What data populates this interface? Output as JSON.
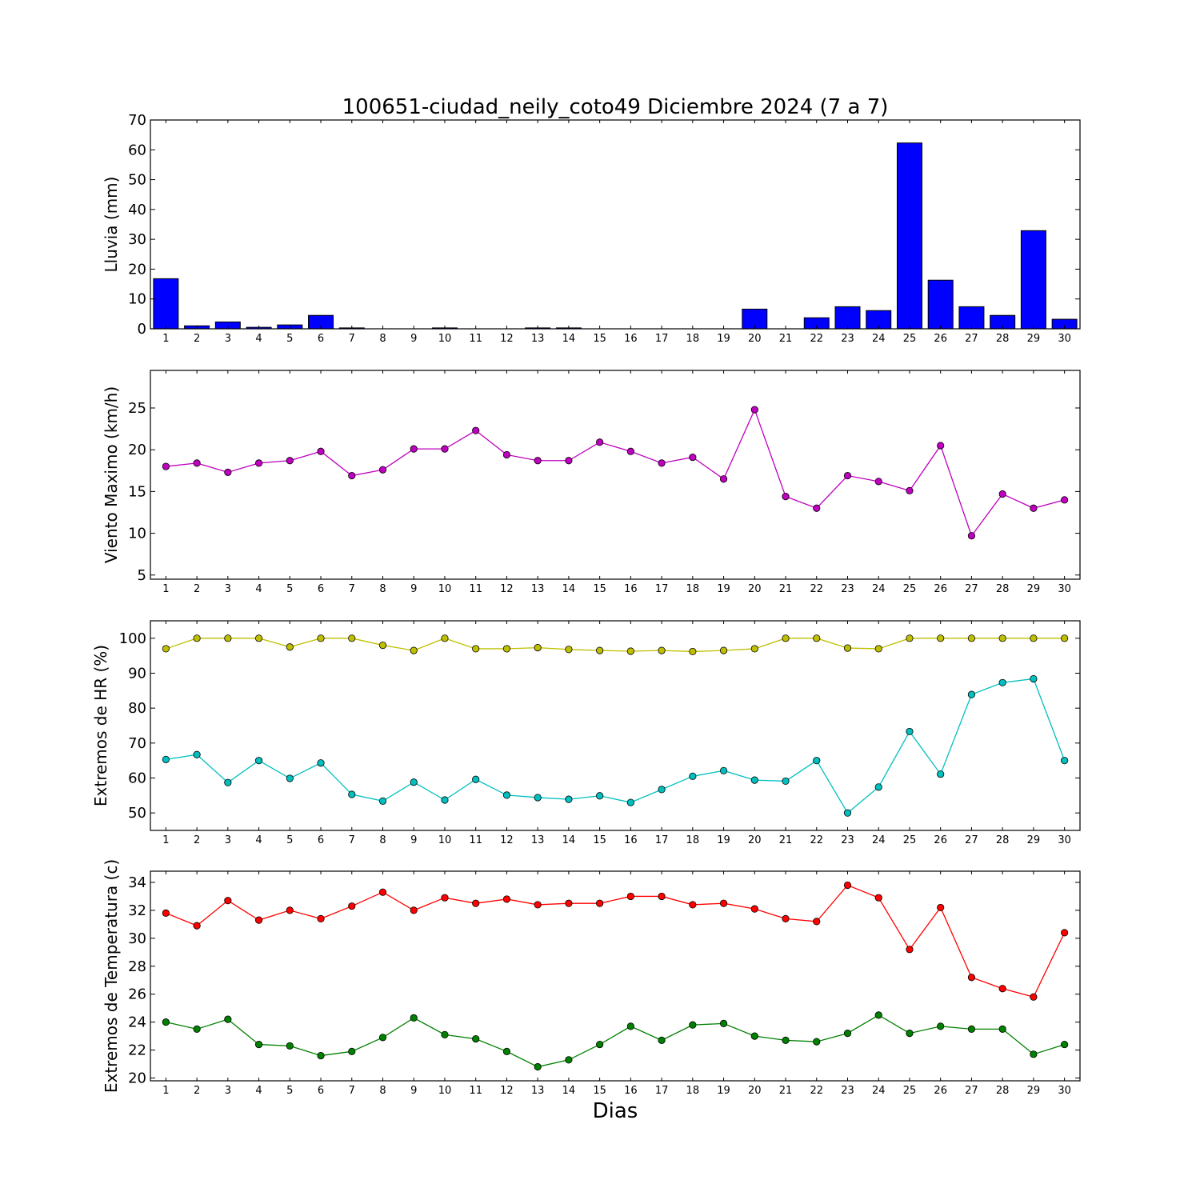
{
  "figure": {
    "title": "100651-ciudad_neily_coto49 Diciembre 2024  (7 a 7)",
    "xlabel": "Dias"
  },
  "chart_data": [
    {
      "type": "bar",
      "ylabel": "Lluvia (mm)",
      "x": [
        1,
        2,
        3,
        4,
        5,
        6,
        7,
        8,
        9,
        10,
        11,
        12,
        13,
        14,
        15,
        16,
        17,
        18,
        19,
        20,
        21,
        22,
        23,
        24,
        25,
        26,
        27,
        28,
        29,
        30
      ],
      "xlim": [
        0.5,
        30.5
      ],
      "ylim": [
        0,
        70
      ],
      "yticks": [
        0,
        10,
        20,
        30,
        40,
        50,
        60,
        70
      ],
      "series": [
        {
          "color": "#0000ff",
          "values": [
            16.8,
            1.0,
            2.3,
            0.5,
            1.3,
            4.5,
            0.3,
            0,
            0,
            0.3,
            0,
            0,
            0.3,
            0.3,
            0,
            0,
            0,
            0,
            0,
            6.6,
            0,
            3.7,
            7.4,
            6.1,
            62.3,
            16.3,
            7.4,
            4.5,
            32.9,
            3.2
          ]
        }
      ]
    },
    {
      "type": "line",
      "ylabel": "Viento Maximo (km/h)",
      "x": [
        1,
        2,
        3,
        4,
        5,
        6,
        7,
        8,
        9,
        10,
        11,
        12,
        13,
        14,
        15,
        16,
        17,
        18,
        19,
        20,
        21,
        22,
        23,
        24,
        25,
        26,
        27,
        28,
        29,
        30
      ],
      "xlim": [
        0.5,
        30.5
      ],
      "ylim": [
        4.5,
        29.5
      ],
      "yticks": [
        5,
        10,
        15,
        20,
        25
      ],
      "series": [
        {
          "color": "#bf00bf",
          "values": [
            18.0,
            18.4,
            17.3,
            18.4,
            18.7,
            19.8,
            16.9,
            17.6,
            20.1,
            20.1,
            22.3,
            19.4,
            18.7,
            18.7,
            20.9,
            19.8,
            18.4,
            19.1,
            16.5,
            24.8,
            14.4,
            13.0,
            16.9,
            16.2,
            15.1,
            20.5,
            9.7,
            14.7,
            13.0,
            14.0
          ]
        }
      ]
    },
    {
      "type": "line",
      "ylabel": "Extremos de HR (%)",
      "x": [
        1,
        2,
        3,
        4,
        5,
        6,
        7,
        8,
        9,
        10,
        11,
        12,
        13,
        14,
        15,
        16,
        17,
        18,
        19,
        20,
        21,
        22,
        23,
        24,
        25,
        26,
        27,
        28,
        29,
        30
      ],
      "xlim": [
        0.5,
        30.5
      ],
      "ylim": [
        45,
        105
      ],
      "yticks": [
        50,
        60,
        70,
        80,
        90,
        100
      ],
      "series": [
        {
          "color": "#bfbf00",
          "values": [
            97,
            100,
            100,
            100,
            97.5,
            100,
            100,
            98,
            96.5,
            100,
            97,
            97,
            97.3,
            96.8,
            96.5,
            96.3,
            96.5,
            96.2,
            96.5,
            97,
            100,
            100,
            97.2,
            97,
            100,
            100,
            100,
            100,
            100,
            100
          ]
        },
        {
          "color": "#00bfbf",
          "values": [
            65.3,
            66.7,
            58.7,
            65.0,
            59.9,
            64.3,
            55.3,
            53.4,
            58.8,
            53.7,
            59.6,
            55.1,
            54.4,
            53.9,
            54.9,
            53.0,
            56.7,
            60.5,
            62.1,
            59.4,
            59.1,
            65.0,
            50.0,
            57.4,
            73.3,
            61.1,
            83.9,
            87.3,
            88.4,
            65.0
          ]
        }
      ]
    },
    {
      "type": "line",
      "ylabel": "Extremos de Temperatura (c)",
      "x": [
        1,
        2,
        3,
        4,
        5,
        6,
        7,
        8,
        9,
        10,
        11,
        12,
        13,
        14,
        15,
        16,
        17,
        18,
        19,
        20,
        21,
        22,
        23,
        24,
        25,
        26,
        27,
        28,
        29,
        30
      ],
      "xlim": [
        0.5,
        30.5
      ],
      "ylim": [
        19.8,
        34.8
      ],
      "yticks": [
        20,
        22,
        24,
        26,
        28,
        30,
        32,
        34
      ],
      "series": [
        {
          "color": "#ff0000",
          "values": [
            31.8,
            30.9,
            32.7,
            31.3,
            32.0,
            31.4,
            32.3,
            33.3,
            32.0,
            32.9,
            32.5,
            32.8,
            32.4,
            32.5,
            32.5,
            33.0,
            33.0,
            32.4,
            32.5,
            32.1,
            31.4,
            31.2,
            33.8,
            32.9,
            29.2,
            32.2,
            27.2,
            26.4,
            25.8,
            30.4
          ]
        },
        {
          "color": "#008000",
          "values": [
            24.0,
            23.5,
            24.2,
            22.4,
            22.3,
            21.6,
            21.9,
            22.9,
            24.3,
            23.1,
            22.8,
            21.9,
            20.8,
            21.3,
            22.4,
            23.7,
            22.7,
            23.8,
            23.9,
            23.0,
            22.7,
            22.6,
            23.2,
            24.5,
            23.2,
            23.7,
            23.5,
            23.5,
            21.7,
            22.4
          ]
        }
      ]
    }
  ]
}
